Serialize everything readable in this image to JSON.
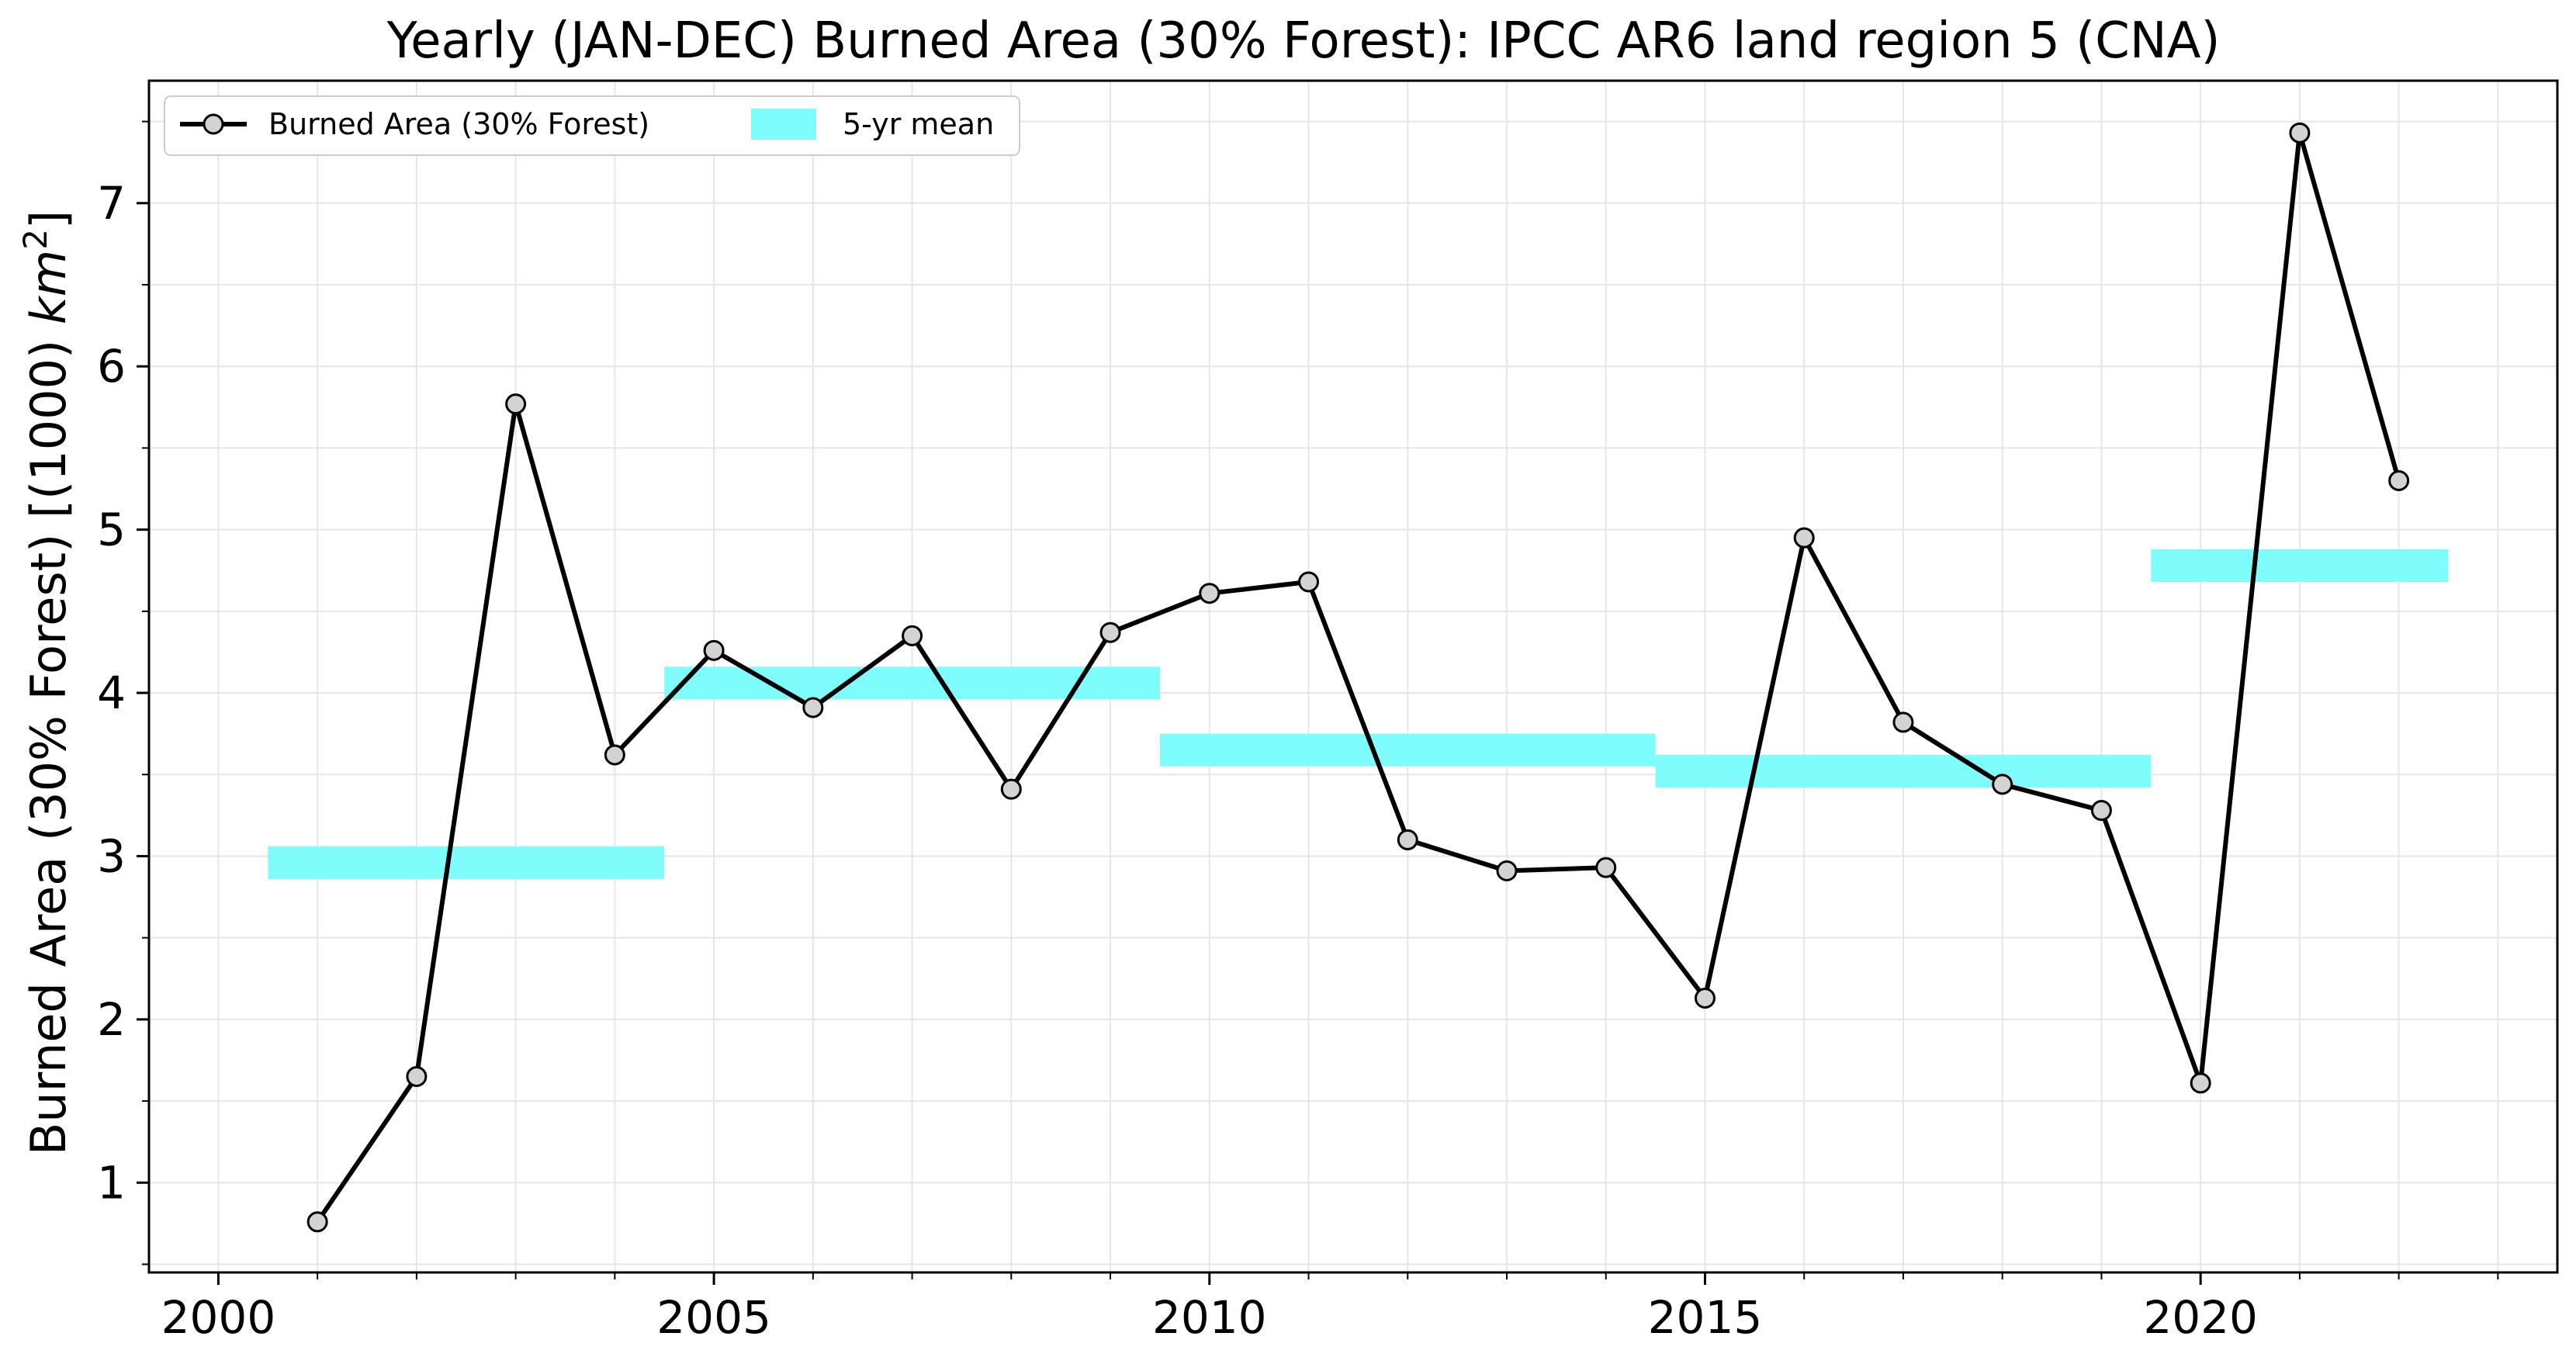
{
  "chart_data": {
    "type": "line",
    "title": "Yearly (JAN-DEC) Burned Area (30% Forest): IPCC AR6 land region 5 (CNA)",
    "ylabel_main": "Burned Area (30% Forest) [(1000) ",
    "ylabel_unit": "km",
    "ylabel_sup": "2",
    "ylabel_end": "]",
    "xlabel": "",
    "xlim": [
      1999.3,
      2023.6
    ],
    "ylim": [
      0.45,
      7.75
    ],
    "xticks": [
      2000,
      2005,
      2010,
      2015,
      2020
    ],
    "yticks": [
      1,
      2,
      3,
      4,
      5,
      6,
      7
    ],
    "grid": true,
    "legend_position": "top-left",
    "series": [
      {
        "name": "Burned Area (30% Forest)",
        "kind": "line-markers",
        "color": "#000000",
        "marker_fill": "#d3d3d3",
        "x": [
          2001,
          2002,
          2003,
          2004,
          2005,
          2006,
          2007,
          2008,
          2009,
          2010,
          2011,
          2012,
          2013,
          2014,
          2015,
          2016,
          2017,
          2018,
          2019,
          2020,
          2021,
          2022
        ],
        "y": [
          0.76,
          1.65,
          5.77,
          3.62,
          4.26,
          3.91,
          4.35,
          3.41,
          4.37,
          4.61,
          4.68,
          3.1,
          2.91,
          2.93,
          2.13,
          4.95,
          3.82,
          3.44,
          3.28,
          1.61,
          7.43,
          5.3
        ]
      },
      {
        "name": "5-yr mean",
        "kind": "bars",
        "color": "#7ffdfd",
        "segments": [
          {
            "x_start": 2000.5,
            "x_end": 2004.5,
            "y": 2.96
          },
          {
            "x_start": 2004.5,
            "x_end": 2009.5,
            "y": 4.06
          },
          {
            "x_start": 2009.5,
            "x_end": 2014.5,
            "y": 3.65
          },
          {
            "x_start": 2014.5,
            "x_end": 2019.5,
            "y": 3.52
          },
          {
            "x_start": 2019.5,
            "x_end": 2022.5,
            "y": 4.78
          }
        ]
      }
    ]
  }
}
